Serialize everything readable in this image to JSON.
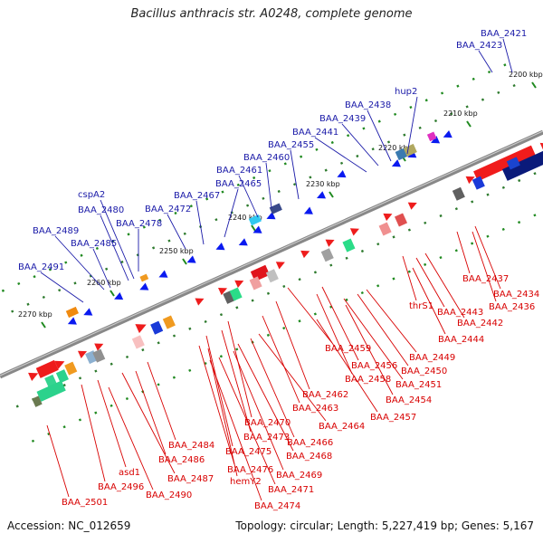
{
  "title": "Bacillus anthracis str. A0248, complete genome",
  "footer": {
    "accession": "Accession: NC_012659",
    "summary": "Topology: circular; Length: 5,227,419 bp; Genes: 5,167"
  },
  "colors": {
    "axis": "#888888",
    "top_label": "#1a1aa8",
    "bottom_label": "#d80000",
    "tick_dash": "#208a20"
  },
  "ticks": [
    {
      "text": "2200 kbp"
    },
    {
      "text": "2210 kbp"
    },
    {
      "text": "2220 kbp"
    },
    {
      "text": "2230 kbp"
    },
    {
      "text": "2240 kbp"
    },
    {
      "text": "2250 kbp"
    },
    {
      "text": "2260 kbp"
    },
    {
      "text": "2270 kbp"
    }
  ],
  "top_genes": [
    "BAA_2421",
    "BAA_2423",
    "hup2",
    "BAA_2438",
    "BAA_2439",
    "BAA_2441",
    "BAA_2455",
    "BAA_2460",
    "BAA_2461",
    "BAA_2465",
    "BAA_2467",
    "BAA_2472",
    "cspA2",
    "BAA_2480",
    "BAA_2478",
    "BAA_2489",
    "BAA_2485",
    "BAA_2491"
  ],
  "bottom_genes": [
    "BAA_2437",
    "BAA_2434",
    "BAA_2436",
    "thrS1",
    "BAA_2443",
    "BAA_2442",
    "BAA_2444",
    "BAA_2449",
    "BAA_2459",
    "BAA_2456",
    "BAA_2450",
    "BAA_2458",
    "BAA_2451",
    "BAA_2462",
    "BAA_2454",
    "BAA_2463",
    "BAA_2457",
    "BAA_2470",
    "BAA_2464",
    "BAA_2473",
    "BAA_2466",
    "BAA_2484",
    "BAA_2475",
    "BAA_2468",
    "BAA_2486",
    "BAA_2476",
    "BAA_2469",
    "asd1",
    "BAA_2487",
    "hemY2",
    "BAA_2471",
    "BAA_2496",
    "BAA_2490",
    "BAA_2474",
    "BAA_2501"
  ]
}
